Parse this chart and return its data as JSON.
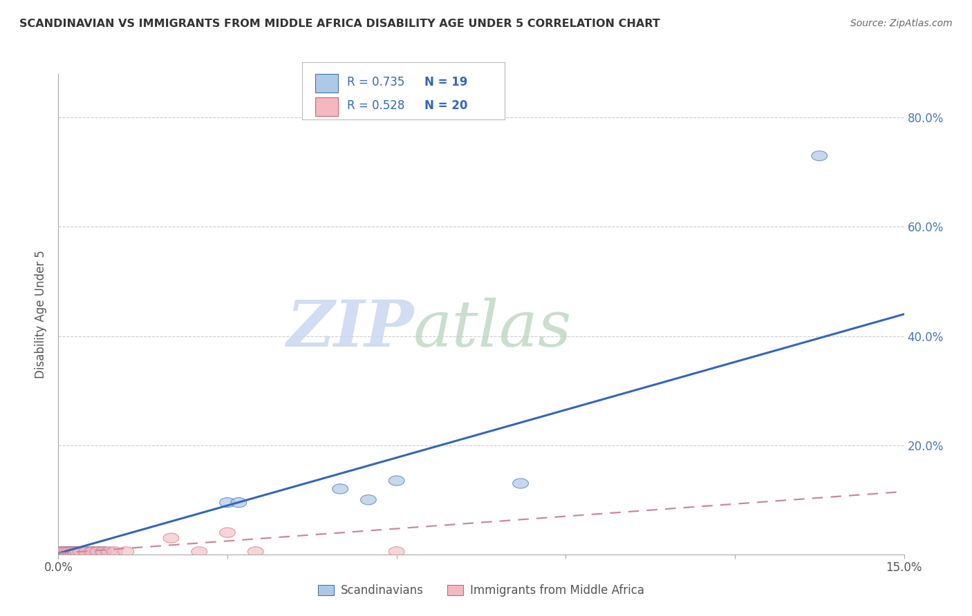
{
  "title": "SCANDINAVIAN VS IMMIGRANTS FROM MIDDLE AFRICA DISABILITY AGE UNDER 5 CORRELATION CHART",
  "source": "Source: ZipAtlas.com",
  "ylabel": "Disability Age Under 5",
  "ytick_values": [
    0.0,
    0.2,
    0.4,
    0.6,
    0.8
  ],
  "ytick_labels": [
    "",
    "20.0%",
    "40.0%",
    "60.0%",
    "80.0%"
  ],
  "xlim": [
    0.0,
    0.15
  ],
  "ylim": [
    0.0,
    0.88
  ],
  "legend_r1": "R = 0.735",
  "legend_n1": "N = 19",
  "legend_r2": "R = 0.528",
  "legend_n2": "N = 20",
  "legend_label1": "Scandinavians",
  "legend_label2": "Immigrants from Middle Africa",
  "blue_fill": "#aec8e8",
  "blue_edge": "#4477aa",
  "pink_fill": "#f4b8c0",
  "pink_edge": "#cc6677",
  "trendline_blue": "#3366bb",
  "trendline_pink": "#cc8899",
  "scandinavian_x": [
    0.0005,
    0.001,
    0.0015,
    0.002,
    0.0025,
    0.003,
    0.0035,
    0.004,
    0.005,
    0.006,
    0.007,
    0.008,
    0.03,
    0.032,
    0.05,
    0.055,
    0.06,
    0.082,
    0.135
  ],
  "scandinavian_y": [
    0.005,
    0.005,
    0.005,
    0.005,
    0.005,
    0.005,
    0.005,
    0.005,
    0.005,
    0.005,
    0.005,
    0.005,
    0.095,
    0.095,
    0.12,
    0.1,
    0.135,
    0.13,
    0.73
  ],
  "immigrant_x": [
    0.0005,
    0.001,
    0.0015,
    0.002,
    0.0025,
    0.003,
    0.0035,
    0.004,
    0.005,
    0.006,
    0.007,
    0.008,
    0.009,
    0.01,
    0.012,
    0.02,
    0.025,
    0.03,
    0.035,
    0.06
  ],
  "immigrant_y": [
    0.005,
    0.005,
    0.005,
    0.005,
    0.005,
    0.005,
    0.005,
    0.005,
    0.005,
    0.005,
    0.005,
    0.005,
    0.005,
    0.005,
    0.005,
    0.03,
    0.005,
    0.04,
    0.005,
    0.005
  ],
  "scand_trendline_x": [
    0.0,
    0.15
  ],
  "scand_trendline_y": [
    0.002,
    0.44
  ],
  "immig_trendline_x": [
    0.0,
    0.15
  ],
  "immig_trendline_y": [
    0.002,
    0.115
  ],
  "grid_color": "#cccccc",
  "spine_color": "#aaaaaa",
  "right_tick_color": "#4477bb",
  "watermark_zip_color": "#c8d8f0",
  "watermark_atlas_color": "#b8d4c0"
}
